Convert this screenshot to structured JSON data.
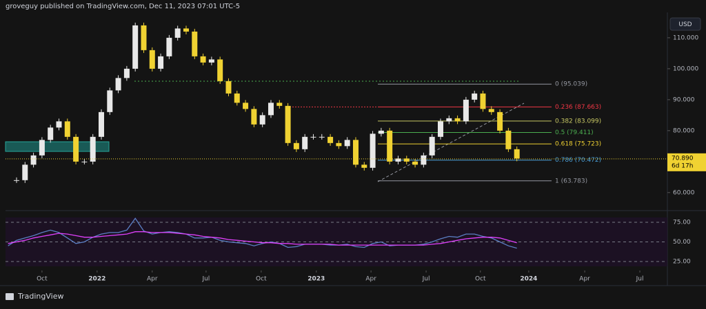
{
  "header": {
    "text": "groveguy published on TradingView.com, Dec 11, 2023 07:01 UTC-5"
  },
  "toolbar": {
    "currency": "USD"
  },
  "footer": {
    "brand": "TradingView"
  },
  "chart_data": {
    "type": "candlestick",
    "up_color": "#e8e8e8",
    "down_color": "#f0d232",
    "x": [
      -8,
      -6,
      -4,
      -2,
      0,
      2,
      4,
      6,
      8,
      10,
      12,
      14,
      16,
      18,
      20,
      22,
      24,
      26,
      28,
      30,
      32,
      34,
      36,
      38,
      40,
      42,
      44,
      46,
      48,
      50,
      52,
      54,
      56,
      58,
      60,
      62,
      64,
      66,
      68,
      70,
      72,
      74,
      76,
      78,
      80,
      82,
      84,
      86,
      88,
      90,
      92,
      94,
      96,
      98,
      100,
      102,
      104,
      106,
      108,
      110,
      112
    ],
    "values": [
      64,
      64,
      69,
      72,
      77,
      81,
      83,
      78,
      70,
      70,
      78,
      86,
      93,
      97,
      100,
      114,
      106,
      100,
      104,
      110,
      113,
      112,
      104,
      102,
      103,
      96,
      92,
      89,
      87,
      82,
      85,
      89,
      88,
      76,
      74,
      78,
      78,
      78,
      76,
      75,
      77,
      69,
      68,
      79,
      80,
      70,
      71,
      70,
      69,
      72,
      78,
      83,
      84,
      83,
      90,
      92,
      87,
      86,
      80,
      74,
      71
    ],
    "xlim": [
      -8.6,
      147.5
    ],
    "xticks": [
      {
        "value": 0,
        "label": "Oct"
      },
      {
        "value": 13,
        "label": "2022"
      },
      {
        "value": 26,
        "label": "Apr"
      },
      {
        "value": 38.7,
        "label": "Jul"
      },
      {
        "value": 51.7,
        "label": "Oct"
      },
      {
        "value": 64.7,
        "label": "2023"
      },
      {
        "value": 77.6,
        "label": "Apr"
      },
      {
        "value": 90.6,
        "label": "Jul"
      },
      {
        "value": 103.4,
        "label": "Oct"
      },
      {
        "value": 114.8,
        "label": "2024"
      },
      {
        "value": 128,
        "label": "Apr"
      },
      {
        "value": 141,
        "label": "Jul"
      }
    ],
    "ylim": [
      54.4,
      118.2
    ],
    "yticks": [
      {
        "value": 60,
        "label": "60.000"
      },
      {
        "value": 80,
        "label": "80.000"
      },
      {
        "value": 90,
        "label": "90.000"
      },
      {
        "value": 100,
        "label": "100.000"
      },
      {
        "value": 110,
        "label": "110.000"
      }
    ],
    "fib_levels": [
      {
        "label": "0 (95.039)",
        "value": 95.039,
        "color": "#9598a1"
      },
      {
        "label": "0.236 (87.663)",
        "value": 87.663,
        "color": "#f23645"
      },
      {
        "label": "0.382 (83.099)",
        "value": 83.099,
        "color": "#c8c864"
      },
      {
        "label": "0.5 (79.411)",
        "value": 79.411,
        "color": "#4caf50"
      },
      {
        "label": "0.618 (75.723)",
        "value": 75.723,
        "color": "#f0d232"
      },
      {
        "label": "0.786 (70.472)",
        "value": 70.472,
        "color": "#4a9fd8"
      },
      {
        "label": "1 (63.783)",
        "value": 63.783,
        "color": "#9598a1"
      }
    ],
    "last_price": {
      "value": 70.89,
      "label": "70.890",
      "countdown": "6d 17h",
      "color": "#f0d232"
    },
    "rsi": {
      "ylim": [
        13.6,
        88.2
      ],
      "yticks": [
        {
          "value": 25,
          "label": "25.00"
        },
        {
          "value": 50,
          "label": "50.00"
        },
        {
          "value": 75,
          "label": "75.00"
        }
      ],
      "series": [
        {
          "color": "#5b7fc4",
          "values": [
            45,
            52,
            55,
            58,
            62,
            65,
            62,
            55,
            48,
            50,
            56,
            60,
            62,
            62,
            65,
            80,
            64,
            60,
            62,
            63,
            62,
            60,
            55,
            55,
            56,
            52,
            50,
            49,
            48,
            45,
            48,
            50,
            48,
            43,
            44,
            47,
            47,
            47,
            46,
            46,
            47,
            44,
            43,
            48,
            50,
            45,
            46,
            46,
            46,
            47,
            50,
            54,
            57,
            56,
            60,
            60,
            57,
            55,
            50,
            45,
            42
          ]
        },
        {
          "color": "#e040fb",
          "values": [
            48,
            50,
            52,
            55,
            57,
            59,
            61,
            60,
            58,
            56,
            56,
            57,
            58,
            59,
            60,
            63,
            63,
            62,
            62,
            62,
            61,
            60,
            59,
            57,
            56,
            55,
            53,
            52,
            51,
            50,
            49,
            49,
            48,
            48,
            47,
            47,
            47,
            47,
            47,
            46,
            46,
            46,
            46,
            46,
            46,
            46,
            46,
            46,
            46,
            46,
            47,
            48,
            50,
            52,
            54,
            55,
            56,
            56,
            55,
            52,
            49
          ]
        }
      ]
    }
  }
}
